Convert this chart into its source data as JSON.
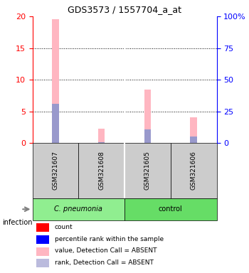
{
  "title": "GDS3573 / 1557704_a_at",
  "samples": [
    "GSM321607",
    "GSM321608",
    "GSM321605",
    "GSM321606"
  ],
  "groups": [
    "C. pneumonia",
    "C. pneumonia",
    "control",
    "control"
  ],
  "group_colors": [
    "#90EE90",
    "#90EE90",
    "#90EE90",
    "#90EE90"
  ],
  "bar_group_colors": [
    "#90EE90",
    "#66CC66"
  ],
  "ylim_left": [
    0,
    20
  ],
  "ylim_right": [
    0,
    100
  ],
  "yticks_left": [
    0,
    5,
    10,
    15,
    20
  ],
  "yticks_right": [
    0,
    25,
    50,
    75,
    100
  ],
  "ytick_labels_right": [
    "0",
    "25",
    "50",
    "75",
    "100%"
  ],
  "pink_bar_values": [
    19.5,
    2.2,
    8.4,
    4.1
  ],
  "blue_bar_values": [
    6.2,
    0.15,
    2.1,
    1.0
  ],
  "pink_bar_color": "#FFB6C1",
  "blue_bar_color": "#9999CC",
  "left_axis_color": "red",
  "right_axis_color": "blue",
  "group_label": "infection",
  "legend_items": [
    {
      "color": "#FF0000",
      "label": "count"
    },
    {
      "color": "#0000FF",
      "label": "percentile rank within the sample"
    },
    {
      "color": "#FFB6C1",
      "label": "value, Detection Call = ABSENT"
    },
    {
      "color": "#BBBBDD",
      "label": "rank, Detection Call = ABSENT"
    }
  ],
  "cell_bg": "#CCCCCC",
  "group1_label": "C. pneumonia",
  "group2_label": "control",
  "group1_color": "#90EE90",
  "group2_color": "#66DD66"
}
